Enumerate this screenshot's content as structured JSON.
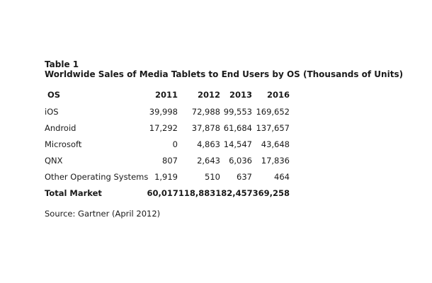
{
  "table": {
    "number": "Table 1",
    "title": "Worldwide Sales of Media Tablets to End Users by OS (Thousands of Units)",
    "columns": [
      "OS",
      "2011",
      "2012",
      "2013",
      "2016"
    ],
    "rows": [
      {
        "os": "iOS",
        "v2011": "39,998",
        "v2012": "72,988",
        "v2013": "99,553",
        "v2016": "169,652"
      },
      {
        "os": "Android",
        "v2011": "17,292",
        "v2012": "37,878",
        "v2013": "61,684",
        "v2016": "137,657"
      },
      {
        "os": "Microsoft",
        "v2011": "0",
        "v2012": "4,863",
        "v2013": "14,547",
        "v2016": "43,648"
      },
      {
        "os": "QNX",
        "v2011": "807",
        "v2012": "2,643",
        "v2013": "6,036",
        "v2016": "17,836"
      },
      {
        "os": "Other Operating Systems",
        "v2011": "1,919",
        "v2012": "510",
        "v2013": "637",
        "v2016": "464"
      }
    ],
    "total": {
      "label": "Total Market",
      "values_text": "60,017118,883182,457369,258"
    }
  },
  "source": "Source: Gartner (April 2012)"
}
